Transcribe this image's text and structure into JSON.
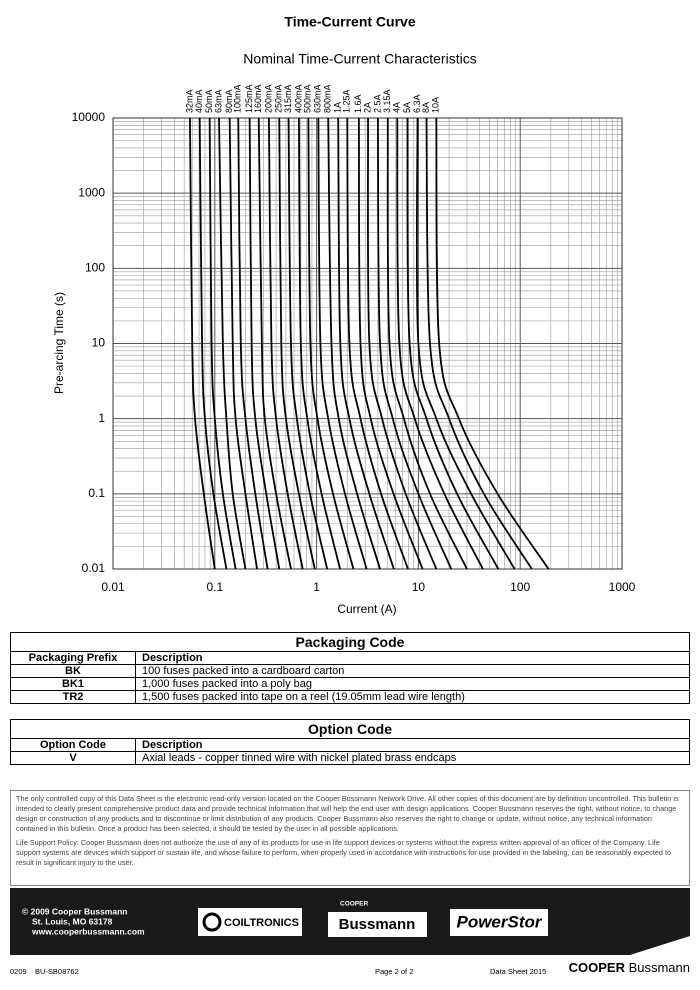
{
  "header": {
    "title": "Time-Current Curve"
  },
  "chart_data": {
    "type": "line",
    "title": "Nominal Time-Current Characteristics",
    "x_label": "Current (A)",
    "y_label": "Pre-arcing Time (s)",
    "log_x": true,
    "log_y": true,
    "grid": true,
    "minor_grid": true,
    "xlim": [
      0.01,
      1000
    ],
    "ylim": [
      0.01,
      10000
    ],
    "xticks": [
      0.01,
      0.1,
      1,
      10,
      100,
      1000
    ],
    "yticks": [
      0.01,
      0.1,
      1,
      10,
      100,
      1000,
      10000
    ],
    "series": [
      {
        "name": "32mA",
        "color": "#000000",
        "x": [
          0.057,
          0.06,
          0.064,
          0.078,
          0.1
        ],
        "values": [
          10000,
          10,
          1,
          0.1,
          0.01
        ]
      },
      {
        "name": "40mA",
        "color": "#000000",
        "x": [
          0.071,
          0.075,
          0.08,
          0.097,
          0.13
        ],
        "values": [
          10000,
          10,
          1,
          0.1,
          0.01
        ]
      },
      {
        "name": "50mA",
        "color": "#000000",
        "x": [
          0.089,
          0.093,
          0.1,
          0.12,
          0.16
        ],
        "values": [
          10000,
          10,
          1,
          0.1,
          0.01
        ]
      },
      {
        "name": "63mA",
        "color": "#000000",
        "x": [
          0.11,
          0.12,
          0.13,
          0.15,
          0.2
        ],
        "values": [
          10000,
          10,
          1,
          0.1,
          0.01
        ]
      },
      {
        "name": "80mA",
        "color": "#000000",
        "x": [
          0.14,
          0.15,
          0.16,
          0.2,
          0.26
        ],
        "values": [
          10000,
          10,
          1,
          0.1,
          0.01
        ]
      },
      {
        "name": "100mA",
        "color": "#000000",
        "x": [
          0.17,
          0.18,
          0.2,
          0.25,
          0.33
        ],
        "values": [
          10000,
          10,
          1,
          0.1,
          0.01
        ]
      },
      {
        "name": "125mA",
        "color": "#000000",
        "x": [
          0.22,
          0.23,
          0.25,
          0.32,
          0.43
        ],
        "values": [
          10000,
          10,
          1,
          0.1,
          0.01
        ]
      },
      {
        "name": "160mA",
        "color": "#000000",
        "x": [
          0.27,
          0.29,
          0.31,
          0.4,
          0.56
        ],
        "values": [
          10000,
          10,
          1,
          0.1,
          0.01
        ]
      },
      {
        "name": "200mA",
        "color": "#000000",
        "x": [
          0.34,
          0.36,
          0.4,
          0.52,
          0.73
        ],
        "values": [
          10000,
          10,
          1,
          0.1,
          0.01
        ]
      },
      {
        "name": "250mA",
        "color": "#000000",
        "x": [
          0.43,
          0.45,
          0.5,
          0.67,
          0.96
        ],
        "values": [
          10000,
          10,
          1,
          0.1,
          0.01
        ]
      },
      {
        "name": "315mA",
        "color": "#000000",
        "x": [
          0.53,
          0.56,
          0.64,
          0.86,
          1.27
        ],
        "values": [
          10000,
          10,
          1,
          0.1,
          0.01
        ]
      },
      {
        "name": "400mA",
        "color": "#000000",
        "x": [
          0.67,
          0.7,
          0.81,
          1.12,
          1.7
        ],
        "values": [
          10000,
          10,
          1,
          0.1,
          0.01
        ]
      },
      {
        "name": "500mA",
        "color": "#000000",
        "x": [
          0.83,
          0.87,
          1.02,
          1.45,
          2.3
        ],
        "values": [
          10000,
          10,
          1,
          0.1,
          0.01
        ]
      },
      {
        "name": "630mA",
        "color": "#000000",
        "x": [
          1.04,
          1.09,
          1.3,
          1.9,
          3.1
        ],
        "values": [
          10000,
          10,
          1,
          0.1,
          0.01
        ]
      },
      {
        "name": "800mA",
        "color": "#000000",
        "x": [
          1.3,
          1.4,
          1.65,
          2.5,
          4.2
        ],
        "values": [
          10000,
          10,
          1,
          0.1,
          0.01
        ]
      },
      {
        "name": "1A",
        "color": "#000000",
        "x": [
          1.63,
          1.71,
          2.1,
          3.3,
          5.74
        ],
        "values": [
          10000,
          10,
          1,
          0.1,
          0.01
        ]
      },
      {
        "name": "1.25A",
        "color": "#000000",
        "x": [
          2.0,
          2.1,
          2.7,
          4.3,
          7.9
        ],
        "values": [
          10000,
          10,
          1,
          0.1,
          0.01
        ]
      },
      {
        "name": "1.6A",
        "color": "#000000",
        "x": [
          2.6,
          2.7,
          3.4,
          5.7,
          11
        ],
        "values": [
          10000,
          10,
          1,
          0.1,
          0.01
        ]
      },
      {
        "name": "2A",
        "color": "#000000",
        "x": [
          3.2,
          3.3,
          4.4,
          7.5,
          15
        ],
        "values": [
          10000,
          10,
          1,
          0.1,
          0.01
        ]
      },
      {
        "name": "2.5A",
        "color": "#000000",
        "x": [
          4.0,
          4.2,
          5.6,
          10,
          21
        ],
        "values": [
          10000,
          10,
          1,
          0.1,
          0.01
        ]
      },
      {
        "name": "3.15A",
        "color": "#000000",
        "x": [
          5.0,
          5.2,
          7.2,
          13,
          30
        ],
        "values": [
          10000,
          10,
          1,
          0.1,
          0.01
        ]
      },
      {
        "name": "4A",
        "color": "#000000",
        "x": [
          6.2,
          6.5,
          9.2,
          18,
          43
        ],
        "values": [
          10000,
          10,
          1,
          0.1,
          0.01
        ]
      },
      {
        "name": "5A",
        "color": "#000000",
        "x": [
          7.8,
          8.2,
          12,
          24,
          61
        ],
        "values": [
          10000,
          10,
          1,
          0.1,
          0.01
        ]
      },
      {
        "name": "6.3A",
        "color": "#000000",
        "x": [
          9.8,
          10,
          15,
          33,
          88
        ],
        "values": [
          10000,
          10,
          1,
          0.1,
          0.01
        ]
      },
      {
        "name": "8A",
        "color": "#000000",
        "x": [
          12,
          13,
          20,
          44,
          130
        ],
        "values": [
          10000,
          10,
          1,
          0.1,
          0.01
        ]
      },
      {
        "name": "10A",
        "color": "#000000",
        "x": [
          15,
          16,
          25,
          60,
          190
        ],
        "values": [
          10000,
          10,
          1,
          0.1,
          0.01
        ]
      }
    ]
  },
  "packaging": {
    "title": "Packaging Code",
    "columns": [
      "Packaging Prefix",
      "Description"
    ],
    "rows": [
      [
        "BK",
        "100 fuses packed into a cardboard carton"
      ],
      [
        "BK1",
        "1,000 fuses packed into a poly bag"
      ],
      [
        "TR2",
        "1,500 fuses packed into tape on a reel (19.05mm lead wire length)"
      ]
    ]
  },
  "option": {
    "title": "Option Code",
    "columns": [
      "Option Code",
      "Description"
    ],
    "rows": [
      [
        "V",
        "Axial leads - copper tinned wire with nickel plated brass endcaps"
      ]
    ]
  },
  "disclaimer": [
    "The only controlled copy of this Data Sheet is the electronic read-only version located on the Cooper Bussmann Network Drive. All other copies of this document are by definition uncontrolled. This bulletin is intended to clearly present comprehensive product data and provide technical information that will help the end user with design applications. Cooper Bussmann reserves the right, without notice, to change design or construction of any products and to discontinue or limit distribution of any products. Cooper Bussmann also reserves the right to change or update, without notice, any technical information contained in this bulletin. Once a product has been selected, it should be tested by the user in all possible applications.",
    "Life Support Policy: Cooper Bussmann does not authorize the use of any of its products for use in life support devices or systems without the express written approval of an officer of the Company. Life support systems are devices which support or sustain life, and whose failure to perform, when properly used in accordance with instructions for use provided in the labeling, can be reasonably expected to result in significant injury to the user."
  ],
  "footer": {
    "copyright": [
      "© 2009 Cooper Bussmann",
      "St. Louis, MO 63178",
      "www.cooperbussmann.com"
    ],
    "logos": [
      "COILTRONICS",
      "COOPER",
      "Bussmann",
      "PowerStor"
    ]
  },
  "bottom": {
    "code": "0209",
    "doc_id": "BU-SB08762",
    "page": "Page 2 of 2",
    "sheet": "Data Sheet 2015",
    "brand_a": "COOPER",
    "brand_b": "Bussmann"
  }
}
